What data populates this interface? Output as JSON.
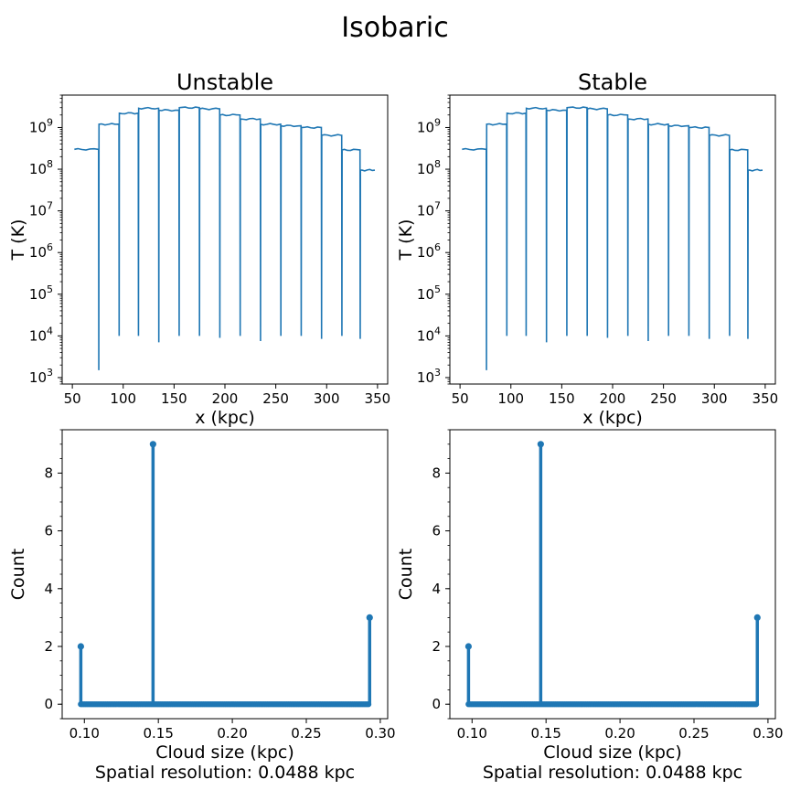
{
  "figure": {
    "title": "Isobaric"
  },
  "chart_data": [
    {
      "type": "line",
      "title": "Unstable",
      "xlabel": "x (kpc)",
      "ylabel": "T (K)",
      "yscale": "log",
      "xlim": [
        40,
        360
      ],
      "ylim": [
        700,
        6000000000.0
      ],
      "xticks": [
        50,
        100,
        150,
        200,
        250,
        300,
        350
      ],
      "yticks": [
        "10^3",
        "10^4",
        "10^5",
        "10^6",
        "10^7",
        "10^8",
        "10^9"
      ],
      "color": "#1f77b4",
      "levels": [
        {
          "x": [
            52,
            76
          ],
          "y": 300000000.0
        },
        {
          "x": [
            76,
            96
          ],
          "y": 1200000000.0
        },
        {
          "x": [
            96,
            115
          ],
          "y": 2200000000.0
        },
        {
          "x": [
            115,
            135
          ],
          "y": 2900000000.0
        },
        {
          "x": [
            135,
            155
          ],
          "y": 2600000000.0
        },
        {
          "x": [
            155,
            175
          ],
          "y": 3000000000.0
        },
        {
          "x": [
            175,
            195
          ],
          "y": 2800000000.0
        },
        {
          "x": [
            195,
            215
          ],
          "y": 2000000000.0
        },
        {
          "x": [
            215,
            235
          ],
          "y": 1600000000.0
        },
        {
          "x": [
            235,
            255
          ],
          "y": 1200000000.0
        },
        {
          "x": [
            255,
            275
          ],
          "y": 1100000000.0
        },
        {
          "x": [
            275,
            295
          ],
          "y": 1000000000.0
        },
        {
          "x": [
            295,
            315
          ],
          "y": 650000000.0
        },
        {
          "x": [
            315,
            333
          ],
          "y": 290000000.0
        },
        {
          "x": [
            333,
            348
          ],
          "y": 95000000.0
        }
      ],
      "dips": [
        {
          "x": 77,
          "y": 1500.0
        },
        {
          "x": 96,
          "y": 10000.0
        },
        {
          "x": 115,
          "y": 10000.0
        },
        {
          "x": 135,
          "y": 7000.0
        },
        {
          "x": 155,
          "y": 10000.0
        },
        {
          "x": 175,
          "y": 10000.0
        },
        {
          "x": 195,
          "y": 9000.0
        },
        {
          "x": 215,
          "y": 10000.0
        },
        {
          "x": 235,
          "y": 7500.0
        },
        {
          "x": 255,
          "y": 10000.0
        },
        {
          "x": 275,
          "y": 10000.0
        },
        {
          "x": 295,
          "y": 8500.0
        },
        {
          "x": 315,
          "y": 10000.0
        },
        {
          "x": 333,
          "y": 8500.0
        }
      ]
    },
    {
      "type": "line",
      "title": "Stable",
      "xlabel": "x (kpc)",
      "ylabel": "T (K)",
      "yscale": "log",
      "xlim": [
        40,
        360
      ],
      "ylim": [
        700,
        6000000000.0
      ],
      "xticks": [
        50,
        100,
        150,
        200,
        250,
        300,
        350
      ],
      "yticks": [
        "10^3",
        "10^4",
        "10^5",
        "10^6",
        "10^7",
        "10^8",
        "10^9"
      ],
      "color": "#1f77b4",
      "levels": [
        {
          "x": [
            52,
            76
          ],
          "y": 300000000.0
        },
        {
          "x": [
            76,
            96
          ],
          "y": 1200000000.0
        },
        {
          "x": [
            96,
            115
          ],
          "y": 2200000000.0
        },
        {
          "x": [
            115,
            135
          ],
          "y": 2900000000.0
        },
        {
          "x": [
            135,
            155
          ],
          "y": 2600000000.0
        },
        {
          "x": [
            155,
            175
          ],
          "y": 3000000000.0
        },
        {
          "x": [
            175,
            195
          ],
          "y": 2800000000.0
        },
        {
          "x": [
            195,
            215
          ],
          "y": 2000000000.0
        },
        {
          "x": [
            215,
            235
          ],
          "y": 1600000000.0
        },
        {
          "x": [
            235,
            255
          ],
          "y": 1200000000.0
        },
        {
          "x": [
            255,
            275
          ],
          "y": 1100000000.0
        },
        {
          "x": [
            275,
            295
          ],
          "y": 1000000000.0
        },
        {
          "x": [
            295,
            315
          ],
          "y": 650000000.0
        },
        {
          "x": [
            315,
            333
          ],
          "y": 290000000.0
        },
        {
          "x": [
            333,
            348
          ],
          "y": 95000000.0
        }
      ],
      "dips": [
        {
          "x": 77,
          "y": 1500.0
        },
        {
          "x": 96,
          "y": 10000.0
        },
        {
          "x": 115,
          "y": 10000.0
        },
        {
          "x": 135,
          "y": 7000.0
        },
        {
          "x": 155,
          "y": 10000.0
        },
        {
          "x": 175,
          "y": 10000.0
        },
        {
          "x": 195,
          "y": 9000.0
        },
        {
          "x": 215,
          "y": 10000.0
        },
        {
          "x": 235,
          "y": 7500.0
        },
        {
          "x": 255,
          "y": 10000.0
        },
        {
          "x": 275,
          "y": 10000.0
        },
        {
          "x": 295,
          "y": 8500.0
        },
        {
          "x": 315,
          "y": 10000.0
        },
        {
          "x": 333,
          "y": 8500.0
        }
      ]
    },
    {
      "type": "bar",
      "style": "stem",
      "title": "",
      "xlabel": "Cloud size (kpc)",
      "xlabel2": "Spatial resolution: 0.0488 kpc",
      "ylabel": "Count",
      "xlim": [
        0.085,
        0.305
      ],
      "ylim": [
        -0.5,
        9.5
      ],
      "xticks": [
        "0.10",
        "0.15",
        "0.20",
        "0.25",
        "0.30"
      ],
      "yticks": [
        "0",
        "2",
        "4",
        "6",
        "8"
      ],
      "color": "#1f77b4",
      "baseline": [
        0.0976,
        0.2928
      ],
      "stems": [
        {
          "x": 0.0976,
          "y": 2
        },
        {
          "x": 0.1464,
          "y": 9
        },
        {
          "x": 0.2928,
          "y": 3
        }
      ]
    },
    {
      "type": "bar",
      "style": "stem",
      "title": "",
      "xlabel": "Cloud size (kpc)",
      "xlabel2": "Spatial resolution: 0.0488 kpc",
      "ylabel": "Count",
      "xlim": [
        0.085,
        0.305
      ],
      "ylim": [
        -0.5,
        9.5
      ],
      "xticks": [
        "0.10",
        "0.15",
        "0.20",
        "0.25",
        "0.30"
      ],
      "yticks": [
        "0",
        "2",
        "4",
        "6",
        "8"
      ],
      "color": "#1f77b4",
      "baseline": [
        0.0976,
        0.2928
      ],
      "stems": [
        {
          "x": 0.0976,
          "y": 2
        },
        {
          "x": 0.1464,
          "y": 9
        },
        {
          "x": 0.2928,
          "y": 3
        }
      ]
    }
  ]
}
